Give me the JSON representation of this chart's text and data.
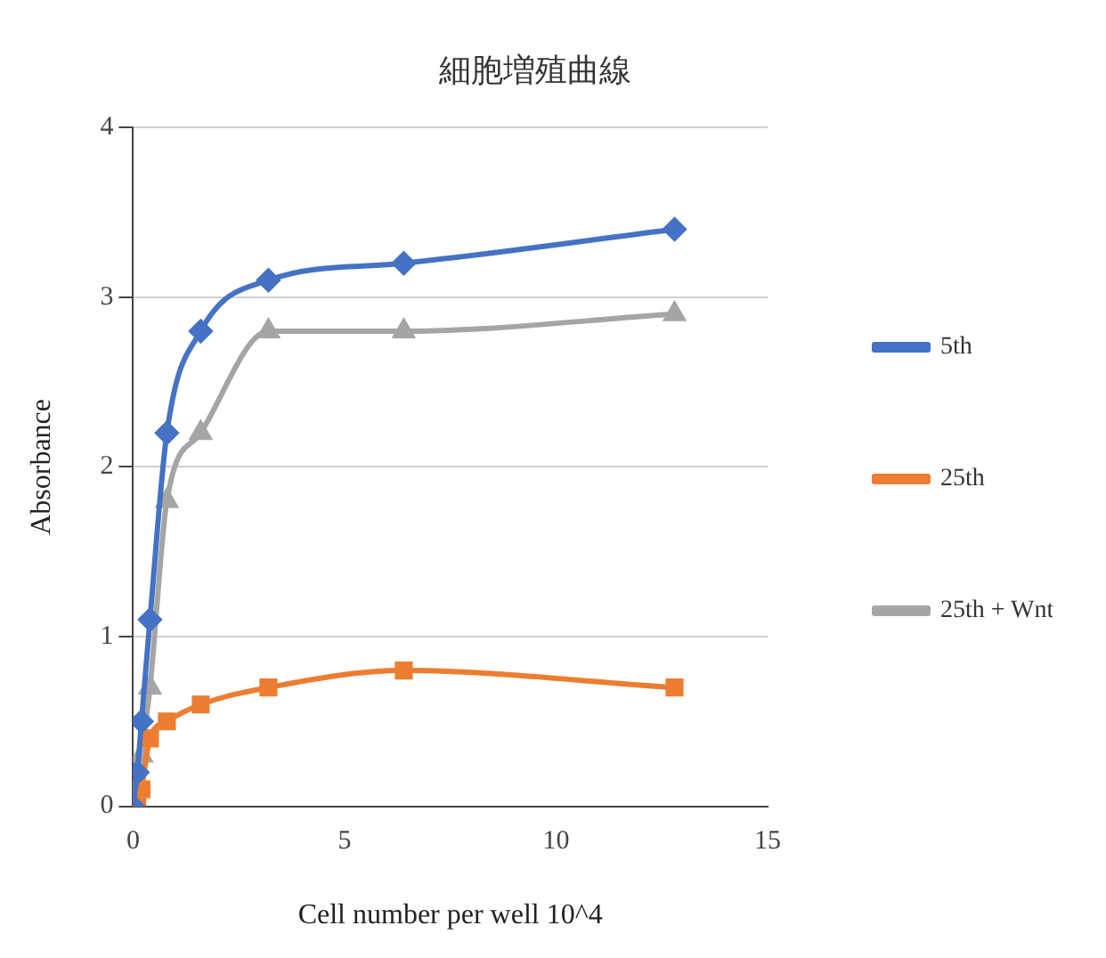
{
  "chart_data": {
    "type": "line",
    "title": "細胞増殖曲線",
    "xlabel": "Cell number per well 10^4",
    "ylabel": "Absorbance",
    "x": [
      0,
      0.1,
      0.2,
      0.4,
      0.8,
      1.6,
      3.2,
      6.4,
      12.8
    ],
    "series": [
      {
        "name": "5th",
        "color": "#4472c4",
        "marker": "diamond",
        "values": [
          0,
          0.2,
          0.5,
          1.1,
          2.2,
          2.8,
          3.1,
          3.2,
          3.4
        ]
      },
      {
        "name": "25th",
        "color": "#ed7d31",
        "marker": "square",
        "values": [
          0,
          0,
          0.1,
          0.4,
          0.5,
          0.6,
          0.7,
          0.8,
          0.7
        ]
      },
      {
        "name": "25th + Wnt",
        "color": "#a5a5a5",
        "marker": "triangle",
        "values": [
          0,
          0.1,
          0.3,
          0.7,
          1.8,
          2.2,
          2.8,
          2.8,
          2.9
        ]
      }
    ],
    "xlim": [
      0,
      15
    ],
    "xticks": [
      0,
      5,
      10,
      15
    ],
    "ylim": [
      0,
      4
    ],
    "yticks": [
      0,
      1,
      2,
      3,
      4
    ],
    "grid": "y",
    "legend": "right"
  }
}
